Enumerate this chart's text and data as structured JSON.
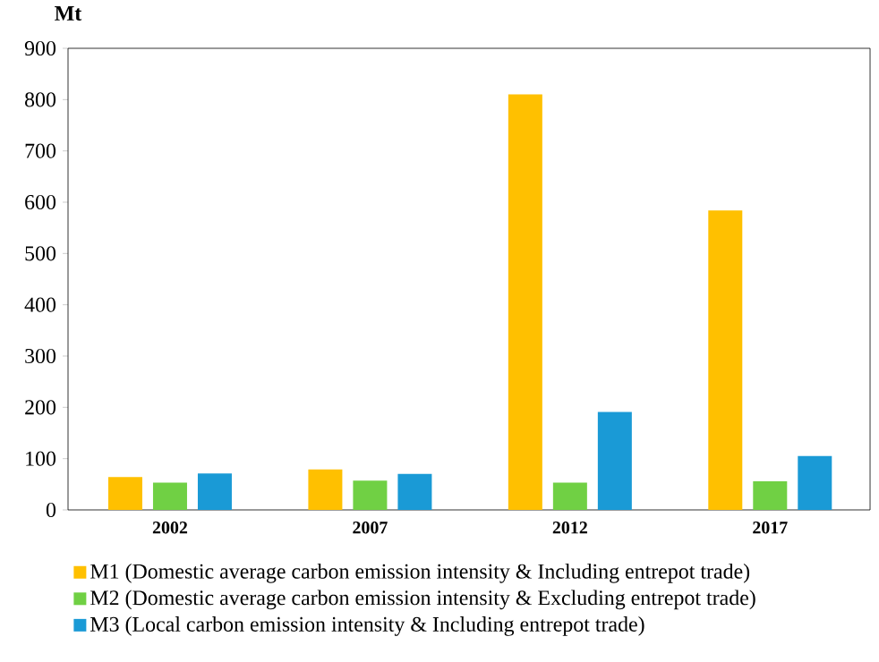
{
  "chart_data": {
    "type": "bar",
    "ylabel": "Mt",
    "categories": [
      "2002",
      "2007",
      "2012",
      "2017"
    ],
    "series": [
      {
        "name": "M1 (Domestic average carbon emission intensity & Including entrepot trade)",
        "color": "#ffc000",
        "values": [
          64,
          79,
          810,
          584
        ]
      },
      {
        "name": "M2 (Domestic average carbon emission intensity & Excluding entrepot trade)",
        "color": "#70d044",
        "values": [
          53,
          57,
          53,
          56
        ]
      },
      {
        "name": "M3 (Local carbon emission intensity & Including entrepot trade)",
        "color": "#1a9ad6",
        "values": [
          71,
          70,
          191,
          105
        ]
      }
    ],
    "ylim": [
      0,
      900
    ],
    "yticks": [
      0,
      100,
      200,
      300,
      400,
      500,
      600,
      700,
      800,
      900
    ],
    "grid": false,
    "legend": "bottom"
  }
}
